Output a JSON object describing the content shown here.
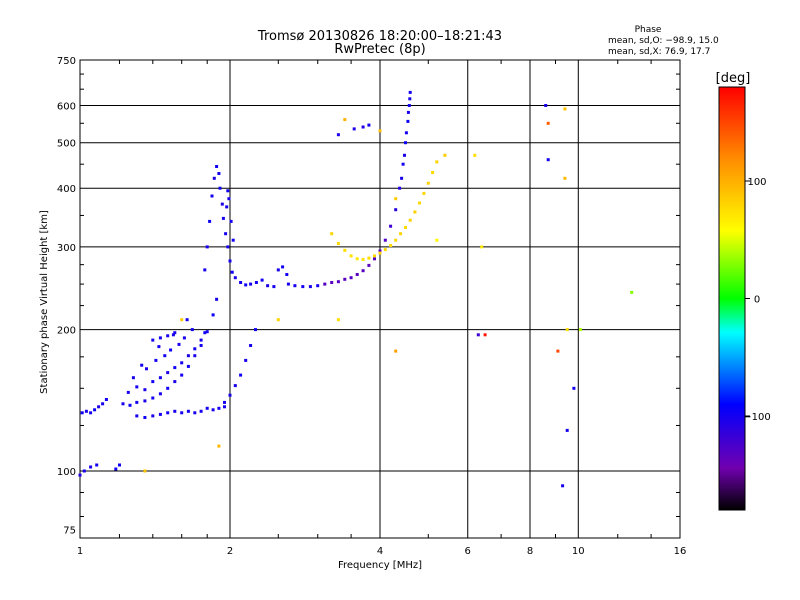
{
  "chart_data": {
    "type": "scatter",
    "title": "Tromsø 20130826 18:20:00–18:21:43",
    "subtitle": "RwPretec (8p)",
    "xlabel": "Frequency [MHz]",
    "ylabel": "Stationary phase Virtual Height [km]",
    "xscale": "log",
    "yscale": "log",
    "xlim": [
      1,
      16
    ],
    "ylim": [
      72,
      750
    ],
    "grid": true,
    "x_ticks": [
      "1",
      "2",
      "4",
      "6",
      "8",
      "10",
      "16"
    ],
    "y_ticks": [
      "75",
      "100",
      "200",
      "300",
      "400",
      "500",
      "600",
      "750"
    ],
    "phase_box": {
      "heading": "Phase",
      "line_o": "mean, sd,O: −98.9, 15.0",
      "line_x": "mean, sd,X:  76.9, 17.7"
    },
    "colorbar": {
      "label": "[deg]",
      "range": [
        -180,
        180
      ],
      "ticks": [
        "100",
        "0",
        "−100"
      ],
      "tick_values": [
        100,
        0,
        -100
      ]
    },
    "series": [
      {
        "mode": "O",
        "points": [
          [
            1.0,
            98,
            -105
          ],
          [
            1.02,
            100,
            -100
          ],
          [
            1.05,
            102,
            -103
          ],
          [
            1.08,
            103,
            -98
          ],
          [
            1.18,
            101,
            -100
          ],
          [
            1.2,
            103,
            -96
          ],
          [
            1.01,
            133,
            -98
          ],
          [
            1.03,
            134,
            -102
          ],
          [
            1.05,
            133,
            -100
          ],
          [
            1.07,
            135,
            -95
          ],
          [
            1.09,
            137,
            -105
          ],
          [
            1.11,
            139,
            -100
          ],
          [
            1.13,
            142,
            -98
          ],
          [
            1.22,
            139,
            -102
          ],
          [
            1.26,
            138,
            -96
          ],
          [
            1.3,
            140,
            -100
          ],
          [
            1.35,
            141,
            -104
          ],
          [
            1.4,
            143,
            -99
          ],
          [
            1.45,
            146,
            -101
          ],
          [
            1.5,
            150,
            -97
          ],
          [
            1.55,
            155,
            -103
          ],
          [
            1.6,
            160,
            -100
          ],
          [
            1.65,
            167,
            -98
          ],
          [
            1.7,
            176,
            -102
          ],
          [
            1.75,
            185,
            -99
          ],
          [
            1.8,
            198,
            -101
          ],
          [
            1.85,
            215,
            -96
          ],
          [
            1.88,
            232,
            -100
          ],
          [
            1.3,
            131,
            -100
          ],
          [
            1.35,
            130,
            -97
          ],
          [
            1.4,
            131,
            -104
          ],
          [
            1.45,
            132,
            -100
          ],
          [
            1.5,
            133,
            -98
          ],
          [
            1.55,
            134,
            -102
          ],
          [
            1.6,
            133,
            -100
          ],
          [
            1.65,
            134,
            -99
          ],
          [
            1.7,
            133,
            -101
          ],
          [
            1.75,
            134,
            -100
          ],
          [
            1.8,
            136,
            -98
          ],
          [
            1.85,
            135,
            -102
          ],
          [
            1.9,
            136,
            -100
          ],
          [
            1.95,
            137,
            -99
          ],
          [
            1.25,
            147,
            -101
          ],
          [
            1.3,
            151,
            -99
          ],
          [
            1.35,
            149,
            -103
          ],
          [
            1.4,
            155,
            -98
          ],
          [
            1.45,
            158,
            -100
          ],
          [
            1.5,
            162,
            -104
          ],
          [
            1.55,
            166,
            -97
          ],
          [
            1.6,
            170,
            -100
          ],
          [
            1.65,
            176,
            -102
          ],
          [
            1.7,
            182,
            -99
          ],
          [
            1.75,
            190,
            -101
          ],
          [
            1.78,
            197,
            -98
          ],
          [
            1.28,
            158,
            -100
          ],
          [
            1.36,
            165,
            -102
          ],
          [
            1.42,
            172,
            -99
          ],
          [
            1.48,
            176,
            -100
          ],
          [
            1.52,
            181,
            -97
          ],
          [
            1.58,
            186,
            -103
          ],
          [
            1.62,
            192,
            -100
          ],
          [
            1.68,
            200,
            -98
          ],
          [
            1.33,
            168,
            -100
          ],
          [
            1.44,
            184,
            -99
          ],
          [
            1.54,
            195,
            -102
          ],
          [
            1.64,
            210,
            -100
          ],
          [
            1.78,
            268,
            -99
          ],
          [
            1.8,
            300,
            -101
          ],
          [
            1.82,
            340,
            -98
          ],
          [
            1.84,
            385,
            -100
          ],
          [
            1.86,
            420,
            -102
          ],
          [
            1.88,
            445,
            -99
          ],
          [
            1.9,
            430,
            -100
          ],
          [
            1.91,
            400,
            -97
          ],
          [
            1.93,
            370,
            -103
          ],
          [
            1.94,
            345,
            -100
          ],
          [
            1.96,
            320,
            -99
          ],
          [
            1.98,
            300,
            -101
          ],
          [
            2.0,
            280,
            -100
          ],
          [
            2.02,
            265,
            -98
          ],
          [
            2.05,
            258,
            -102
          ],
          [
            2.1,
            252,
            -100
          ],
          [
            2.15,
            249,
            -98
          ],
          [
            2.2,
            250,
            -101
          ],
          [
            2.26,
            252,
            -100
          ],
          [
            2.32,
            255,
            -99
          ],
          [
            2.38,
            248,
            -102
          ],
          [
            2.45,
            247,
            -100
          ],
          [
            1.97,
            365,
            -100
          ],
          [
            1.98,
            395,
            -97
          ],
          [
            1.99,
            380,
            -103
          ],
          [
            2.01,
            340,
            -100
          ],
          [
            2.03,
            310,
            -99
          ],
          [
            2.5,
            268,
            -101
          ],
          [
            2.55,
            272,
            -98
          ],
          [
            2.6,
            262,
            -100
          ],
          [
            2.62,
            250,
            -102
          ],
          [
            2.7,
            248,
            -100
          ],
          [
            2.8,
            247,
            -99
          ],
          [
            2.9,
            247,
            -101
          ],
          [
            3.0,
            248,
            -98
          ],
          [
            3.1,
            250,
            -130
          ],
          [
            3.2,
            252,
            -135
          ],
          [
            3.3,
            253,
            -132
          ],
          [
            3.4,
            256,
            -134
          ],
          [
            3.5,
            258,
            -130
          ],
          [
            3.6,
            262,
            -133
          ],
          [
            3.7,
            267,
            -131
          ],
          [
            3.8,
            274,
            -135
          ],
          [
            3.9,
            283,
            -130
          ],
          [
            4.0,
            294,
            -132
          ],
          [
            4.1,
            310,
            -128
          ],
          [
            4.2,
            332,
            -120
          ],
          [
            4.3,
            360,
            -110
          ],
          [
            4.38,
            400,
            -105
          ],
          [
            4.45,
            450,
            -100
          ],
          [
            4.5,
            500,
            -98
          ],
          [
            4.55,
            555,
            -96
          ],
          [
            4.58,
            600,
            -100
          ],
          [
            4.6,
            640,
            -98
          ],
          [
            4.42,
            420,
            -100
          ],
          [
            4.48,
            470,
            -102
          ],
          [
            4.52,
            525,
            -99
          ],
          [
            4.56,
            580,
            -101
          ],
          [
            4.59,
            620,
            -100
          ],
          [
            3.55,
            535,
            -105
          ],
          [
            3.7,
            540,
            -108
          ],
          [
            3.8,
            545,
            -100
          ],
          [
            3.3,
            520,
            -103
          ],
          [
            1.95,
            140,
            -99
          ],
          [
            2.0,
            145,
            -101
          ],
          [
            2.05,
            152,
            -100
          ],
          [
            2.1,
            160,
            -98
          ],
          [
            2.15,
            172,
            -102
          ],
          [
            2.2,
            185,
            -100
          ],
          [
            2.25,
            200,
            -99
          ],
          [
            1.4,
            190,
            -100
          ],
          [
            1.45,
            192,
            -98
          ],
          [
            1.5,
            194,
            -101
          ],
          [
            1.55,
            197,
            -99
          ],
          [
            8.6,
            600,
            -102
          ],
          [
            8.7,
            460,
            -98
          ],
          [
            9.3,
            93,
            -100
          ],
          [
            9.5,
            122,
            -101
          ],
          [
            9.8,
            150,
            -99
          ]
        ]
      },
      {
        "mode": "X",
        "points": [
          [
            3.2,
            320,
            80
          ],
          [
            3.3,
            305,
            78
          ],
          [
            3.4,
            295,
            75
          ],
          [
            3.5,
            287,
            72
          ],
          [
            3.6,
            283,
            70
          ],
          [
            3.7,
            282,
            72
          ],
          [
            3.8,
            284,
            75
          ],
          [
            3.9,
            287,
            78
          ],
          [
            4.0,
            291,
            80
          ],
          [
            4.1,
            296,
            78
          ],
          [
            4.2,
            302,
            76
          ],
          [
            4.3,
            310,
            79
          ],
          [
            4.4,
            320,
            81
          ],
          [
            4.5,
            330,
            78
          ],
          [
            4.6,
            342,
            80
          ],
          [
            4.7,
            356,
            82
          ],
          [
            4.8,
            372,
            79
          ],
          [
            4.9,
            390,
            80
          ],
          [
            5.0,
            410,
            82
          ],
          [
            5.1,
            432,
            78
          ],
          [
            5.2,
            455,
            80
          ],
          [
            5.4,
            470,
            85
          ],
          [
            6.4,
            300,
            70
          ],
          [
            5.2,
            310,
            60
          ],
          [
            4.0,
            530,
            90
          ],
          [
            4.3,
            380,
            85
          ],
          [
            3.4,
            560,
            100
          ],
          [
            6.2,
            470,
            75
          ],
          [
            1.35,
            100,
            90
          ],
          [
            1.6,
            210,
            85
          ],
          [
            1.9,
            113,
            95
          ],
          [
            2.5,
            210,
            80
          ],
          [
            3.3,
            210,
            75
          ],
          [
            4.3,
            180,
            110
          ],
          [
            9.4,
            420,
            95
          ],
          [
            9.5,
            200,
            75
          ],
          [
            9.4,
            590,
            90
          ],
          [
            12.8,
            240,
            30
          ],
          [
            10.1,
            200,
            40
          ],
          [
            9.1,
            180,
            150
          ],
          [
            6.5,
            195,
            170
          ],
          [
            6.3,
            195,
            -120
          ],
          [
            8.7,
            550,
            140
          ]
        ]
      }
    ]
  }
}
